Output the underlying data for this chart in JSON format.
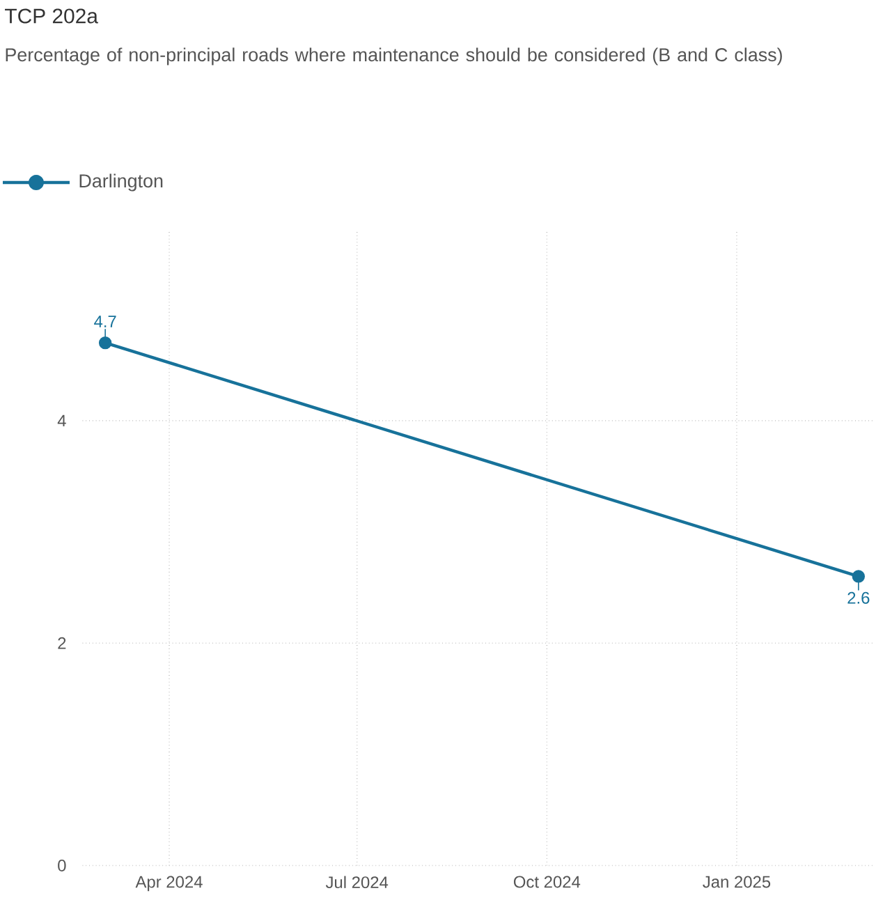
{
  "chart_data": {
    "type": "line",
    "title": "TCP 202a",
    "subtitle": "Percentage of non-principal roads where maintenance should be considered (B and C class)",
    "x": [
      "2024-03-01",
      "2025-03-01"
    ],
    "series": [
      {
        "name": "Darlington",
        "color": "#17729a",
        "values": [
          4.7,
          2.6
        ]
      }
    ],
    "xlim": [
      "2024-02-19",
      "2025-03-09"
    ],
    "xticks": [
      {
        "value": "2024-04-01",
        "label": "Apr 2024"
      },
      {
        "value": "2024-07-01",
        "label": "Jul 2024"
      },
      {
        "value": "2024-10-01",
        "label": "Oct 2024"
      },
      {
        "value": "2025-01-01",
        "label": "Jan 2025"
      }
    ],
    "ylim": [
      0,
      5.7
    ],
    "yticks": [
      0,
      2,
      4
    ],
    "grid": true,
    "legend": "top left",
    "marker": "circle",
    "line_style": "solid",
    "data_labels": true
  }
}
